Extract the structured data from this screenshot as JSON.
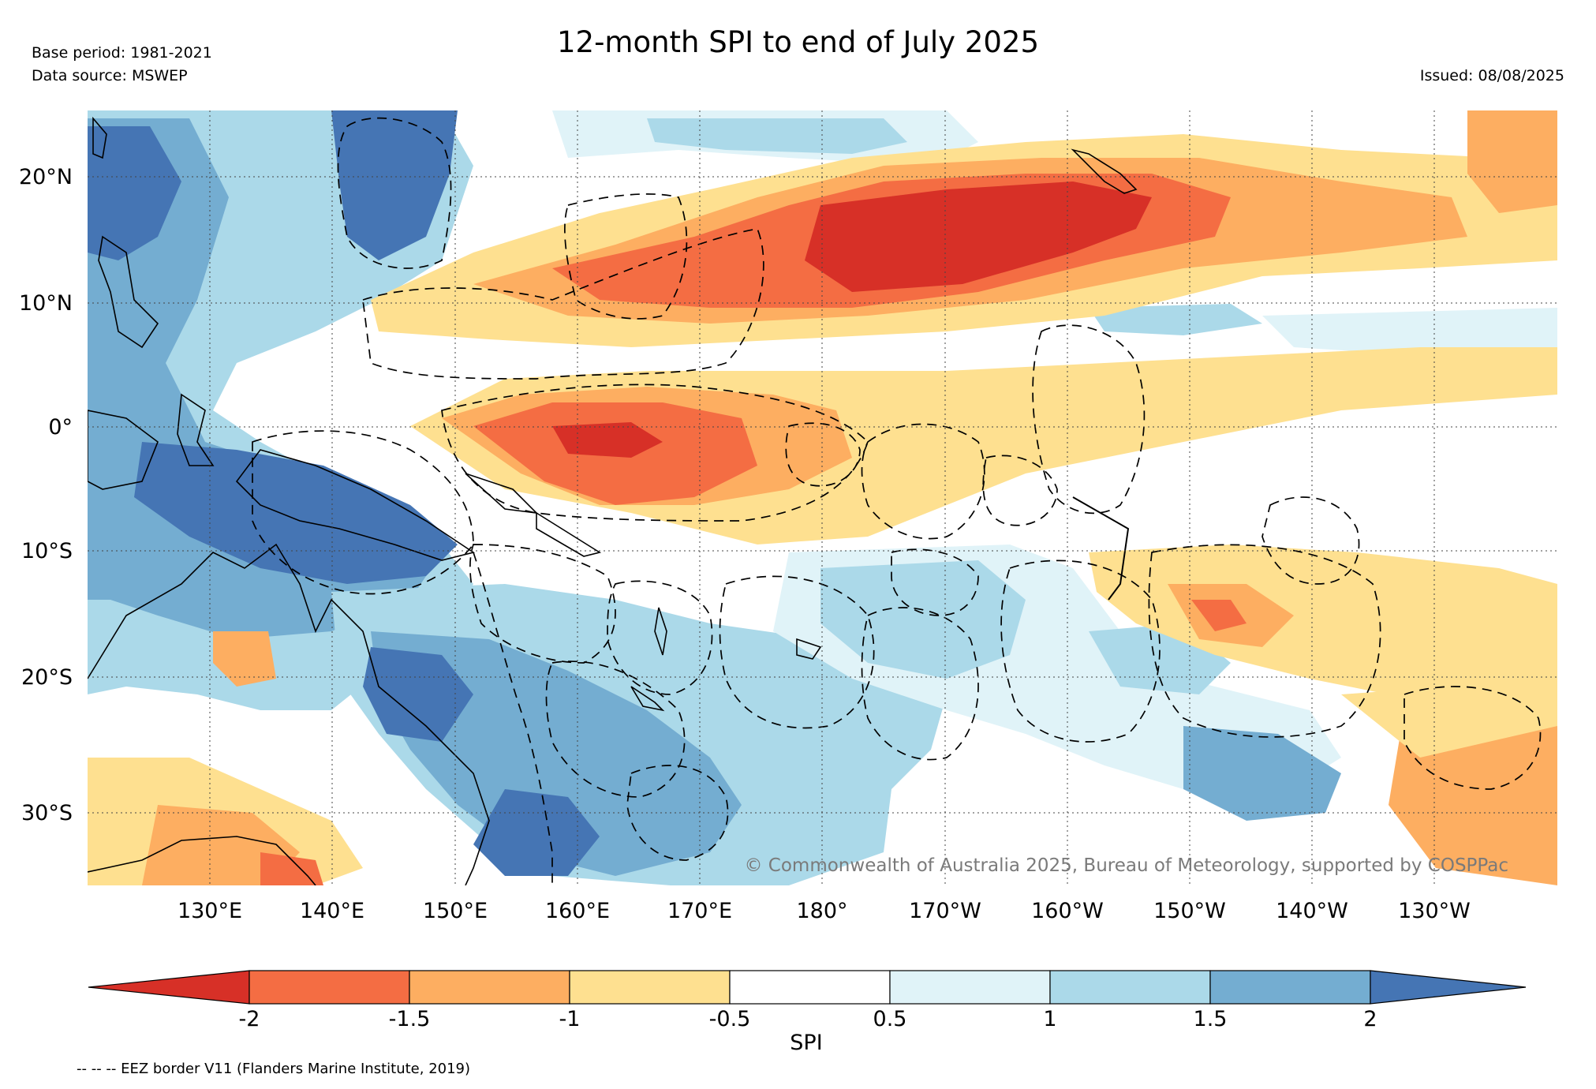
{
  "title": "12-month SPI to end of July 2025",
  "meta": {
    "base_period": "Base period: 1981-2021",
    "data_source": "Data source: MSWEP",
    "issued": "Issued: 08/08/2025"
  },
  "map": {
    "lat_labels": [
      "20°N",
      "10°N",
      "0°",
      "10°S",
      "20°S",
      "30°S"
    ],
    "lon_labels": [
      "130°E",
      "140°E",
      "150°E",
      "160°E",
      "170°E",
      "180°",
      "170°W",
      "160°W",
      "150°W",
      "140°W",
      "130°W"
    ],
    "lat_range": [
      -36,
      25
    ],
    "lon_range_east": [
      120,
      240
    ],
    "copyright": "© Commonwealth of Australia 2025, Bureau of Meteorology, supported by COSPPac"
  },
  "colorbar": {
    "label": "SPI",
    "ticks": [
      "-2",
      "-1.5",
      "-1",
      "-0.5",
      "0.5",
      "1",
      "1.5",
      "2"
    ],
    "colors": [
      "#d73027",
      "#f46d43",
      "#fdae61",
      "#fee090",
      "#ffffff",
      "#e0f3f8",
      "#abd9e9",
      "#74add1",
      "#4575b4"
    ]
  },
  "legend_footnote": "-- -- -- EEZ border V11 (Flanders Marine Institute, 2019)",
  "palette": {
    "dry_extreme": "#d73027",
    "dry_severe": "#f46d43",
    "dry_moderate": "#fdae61",
    "dry_mild": "#fee090",
    "normal": "#ffffff",
    "wet_mild": "#e0f3f8",
    "wet_moderate": "#abd9e9",
    "wet_severe": "#74add1",
    "wet_extreme": "#4575b4"
  }
}
